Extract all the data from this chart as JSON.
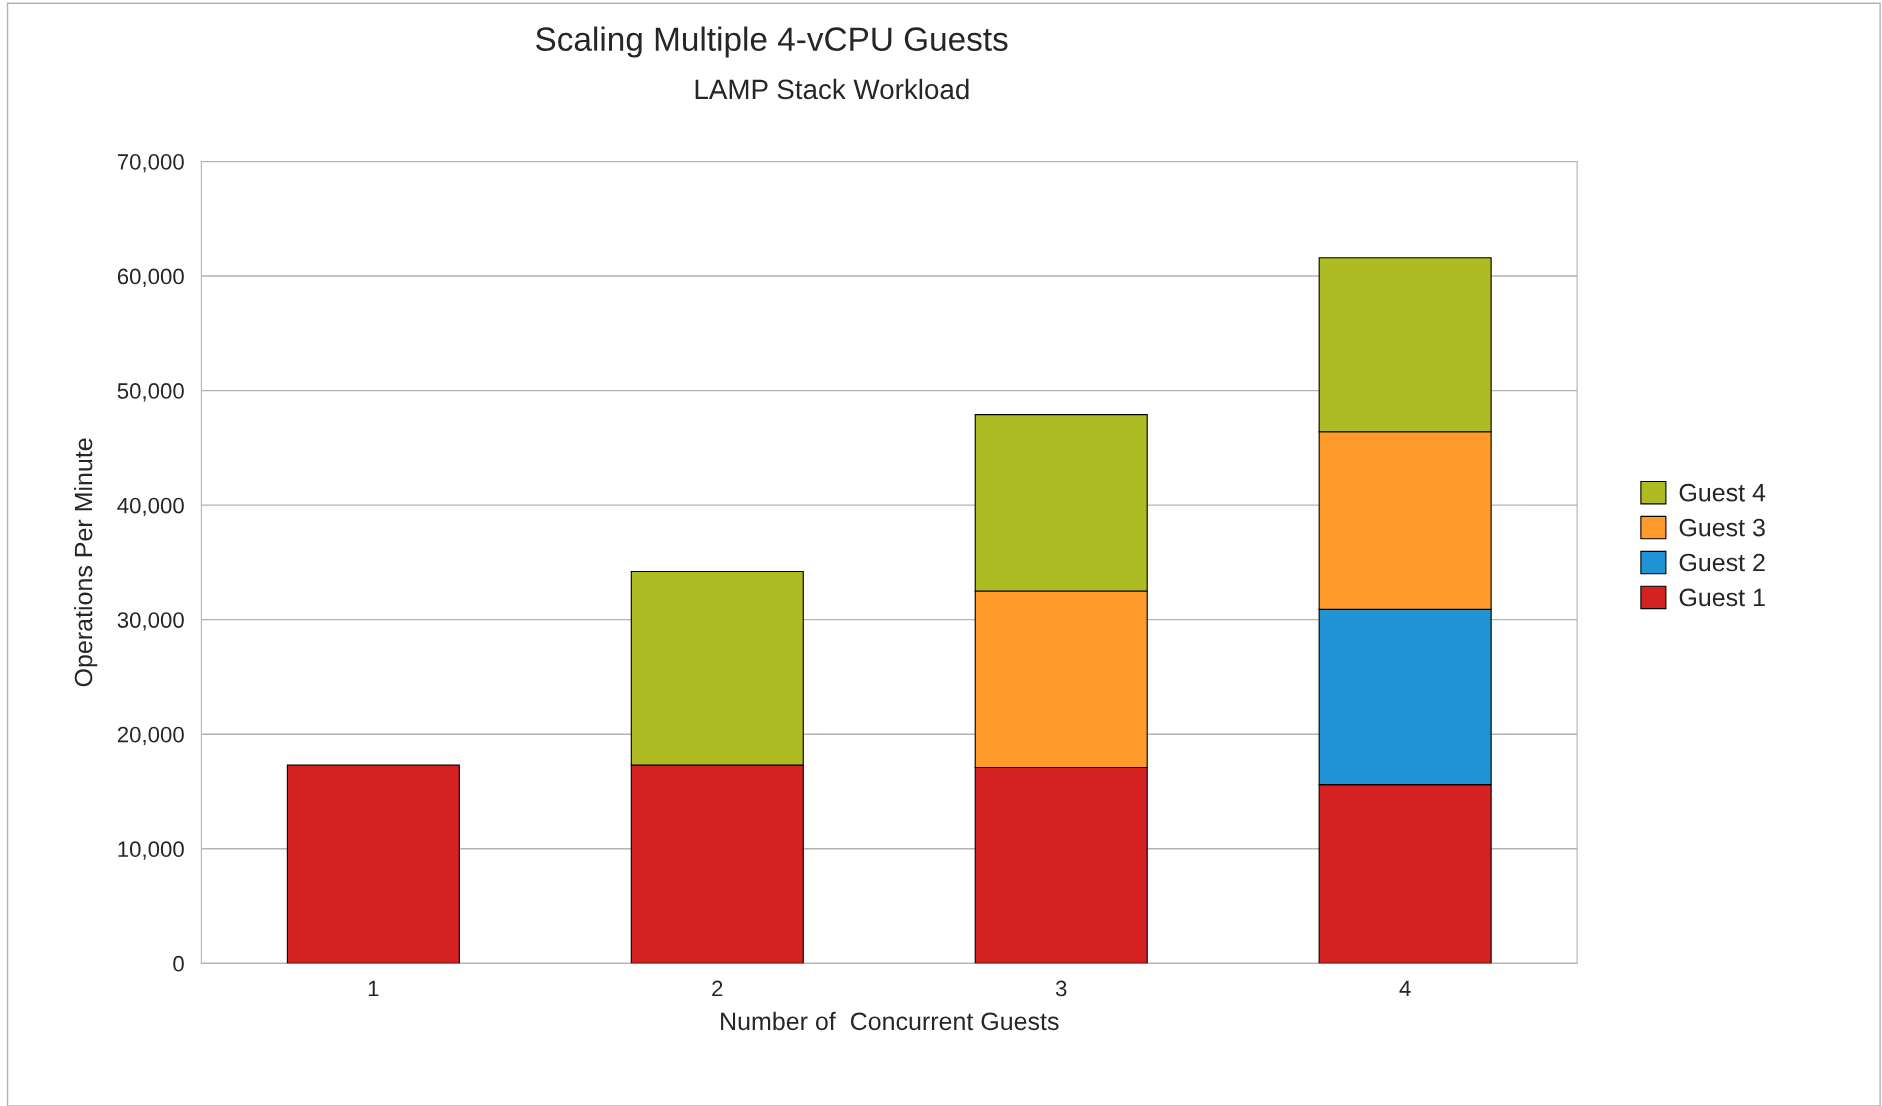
{
  "chart_data": {
    "type": "bar",
    "title": "Scaling Multiple 4-vCPU Guests",
    "subtitle": "LAMP Stack Workload",
    "xlabel": "Number of  Concurrent Guests",
    "ylabel": "Operations Per Minute",
    "categories": [
      "1",
      "2",
      "3",
      "4"
    ],
    "stacked": true,
    "series": [
      {
        "name": "Guest 1",
        "color": "#d42121",
        "values": [
          17300,
          17300,
          17100,
          15600
        ]
      },
      {
        "name": "Guest 2",
        "color": "#1f93d3",
        "values": [
          null,
          null,
          null,
          15300
        ]
      },
      {
        "name": "Guest 3",
        "color": "#ff9b2b",
        "values": [
          null,
          null,
          15400,
          15500
        ]
      },
      {
        "name": "Guest 4",
        "color": "#afbb22",
        "values": [
          null,
          16900,
          15400,
          15200
        ]
      }
    ],
    "ylim": [
      0,
      70000
    ],
    "yticks": [
      {
        "value": 0,
        "label": "0"
      },
      {
        "value": 10000,
        "label": "10,000"
      },
      {
        "value": 20000,
        "label": "20,000"
      },
      {
        "value": 30000,
        "label": "30,000"
      },
      {
        "value": 40000,
        "label": "40,000"
      },
      {
        "value": 50000,
        "label": "50,000"
      },
      {
        "value": 60000,
        "label": "60,000"
      },
      {
        "value": 70000,
        "label": "70,000"
      }
    ],
    "grid": "y",
    "legend": "right"
  }
}
